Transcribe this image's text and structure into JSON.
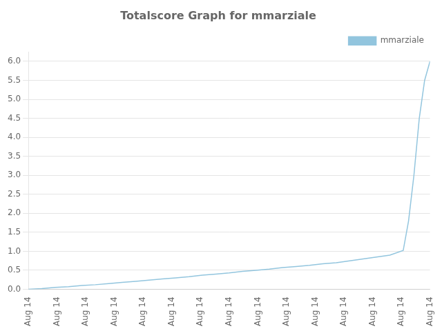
{
  "chart_data": {
    "type": "line",
    "title": "Totalscore Graph for mmarziale",
    "x": [
      0,
      0.5,
      1,
      1.5,
      2,
      2.5,
      3,
      3.5,
      4,
      4.5,
      5,
      5.5,
      6,
      6.5,
      7,
      7.5,
      8,
      8.5,
      9,
      9.5,
      10,
      10.5,
      11,
      11.5,
      12,
      12.5,
      13,
      13.5,
      14,
      14.2,
      14.4,
      14.6,
      14.8,
      15
    ],
    "series": [
      {
        "name": "mmarziale",
        "color": "#92c5de",
        "values": [
          0.0,
          0.02,
          0.05,
          0.07,
          0.1,
          0.12,
          0.15,
          0.18,
          0.21,
          0.24,
          0.27,
          0.3,
          0.33,
          0.37,
          0.4,
          0.43,
          0.47,
          0.5,
          0.53,
          0.57,
          0.6,
          0.63,
          0.67,
          0.7,
          0.75,
          0.8,
          0.85,
          0.9,
          1.02,
          1.8,
          3.0,
          4.5,
          5.5,
          6.0
        ]
      }
    ],
    "xlim": [
      0,
      15
    ],
    "xticks": [
      {
        "value": 0,
        "label": "Aug 14"
      },
      {
        "value": 1.0714285714285714,
        "label": "Aug 14"
      },
      {
        "value": 2.142857142857143,
        "label": "Aug 14"
      },
      {
        "value": 3.2142857142857144,
        "label": "Aug 14"
      },
      {
        "value": 4.285714285714286,
        "label": "Aug 14"
      },
      {
        "value": 5.357142857142857,
        "label": "Aug 14"
      },
      {
        "value": 6.428571428571429,
        "label": "Aug 14"
      },
      {
        "value": 7.5,
        "label": "Aug 14"
      },
      {
        "value": 8.571428571428571,
        "label": "Aug 14"
      },
      {
        "value": 9.642857142857142,
        "label": "Aug 14"
      },
      {
        "value": 10.714285714285714,
        "label": "Aug 14"
      },
      {
        "value": 11.785714285714286,
        "label": "Aug 14"
      },
      {
        "value": 12.857142857142858,
        "label": "Aug 14"
      },
      {
        "value": 13.928571428571429,
        "label": "Aug 14"
      },
      {
        "value": 15,
        "label": "Aug 14"
      }
    ],
    "ylim": [
      0.0,
      6.25
    ],
    "yticks": [
      {
        "value": 0,
        "label": "0.0"
      },
      0.5,
      {
        "value": 1,
        "label": "1.0"
      },
      1.5,
      {
        "value": 2,
        "label": "2.0"
      },
      2.5,
      {
        "value": 3,
        "label": "3.0"
      },
      3.5,
      {
        "value": 4,
        "label": "4.0"
      },
      4.5,
      {
        "value": 5,
        "label": "5.0"
      },
      5.5,
      {
        "value": 6,
        "label": "6.0"
      }
    ],
    "grid": "y",
    "legend": "upper right"
  }
}
